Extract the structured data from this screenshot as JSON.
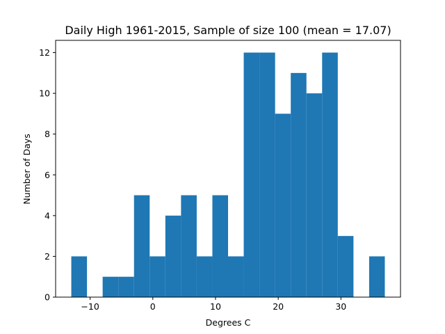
{
  "chart_data": {
    "type": "bar",
    "title": "Daily High 1961-2015, Sample of size 100 (mean = 17.07)",
    "xlabel": "Degrees C",
    "ylabel": "Number of Days",
    "xlim": [
      -15.5,
      39.5
    ],
    "ylim": [
      0,
      12.6
    ],
    "xticks": [
      -10,
      0,
      10,
      20,
      30
    ],
    "yticks": [
      0,
      2,
      4,
      6,
      8,
      10,
      12
    ],
    "bins": [
      {
        "start": -13.0,
        "end": -10.5,
        "count": 2
      },
      {
        "start": -10.5,
        "end": -8.0,
        "count": 0
      },
      {
        "start": -8.0,
        "end": -5.5,
        "count": 1
      },
      {
        "start": -5.5,
        "end": -3.0,
        "count": 1
      },
      {
        "start": -3.0,
        "end": -0.5,
        "count": 5
      },
      {
        "start": -0.5,
        "end": 2.0,
        "count": 2
      },
      {
        "start": 2.0,
        "end": 4.5,
        "count": 4
      },
      {
        "start": 4.5,
        "end": 7.0,
        "count": 5
      },
      {
        "start": 7.0,
        "end": 9.5,
        "count": 2
      },
      {
        "start": 9.5,
        "end": 12.0,
        "count": 5
      },
      {
        "start": 12.0,
        "end": 14.5,
        "count": 2
      },
      {
        "start": 14.5,
        "end": 17.0,
        "count": 12
      },
      {
        "start": 17.0,
        "end": 19.5,
        "count": 12
      },
      {
        "start": 19.5,
        "end": 22.0,
        "count": 9
      },
      {
        "start": 22.0,
        "end": 24.5,
        "count": 11
      },
      {
        "start": 24.5,
        "end": 27.0,
        "count": 10
      },
      {
        "start": 27.0,
        "end": 29.5,
        "count": 12
      },
      {
        "start": 29.5,
        "end": 32.0,
        "count": 3
      },
      {
        "start": 32.0,
        "end": 34.5,
        "count": 0
      },
      {
        "start": 34.5,
        "end": 37.0,
        "count": 2
      }
    ],
    "bar_color": "#1f77b4",
    "grid": false,
    "legend": "none"
  }
}
